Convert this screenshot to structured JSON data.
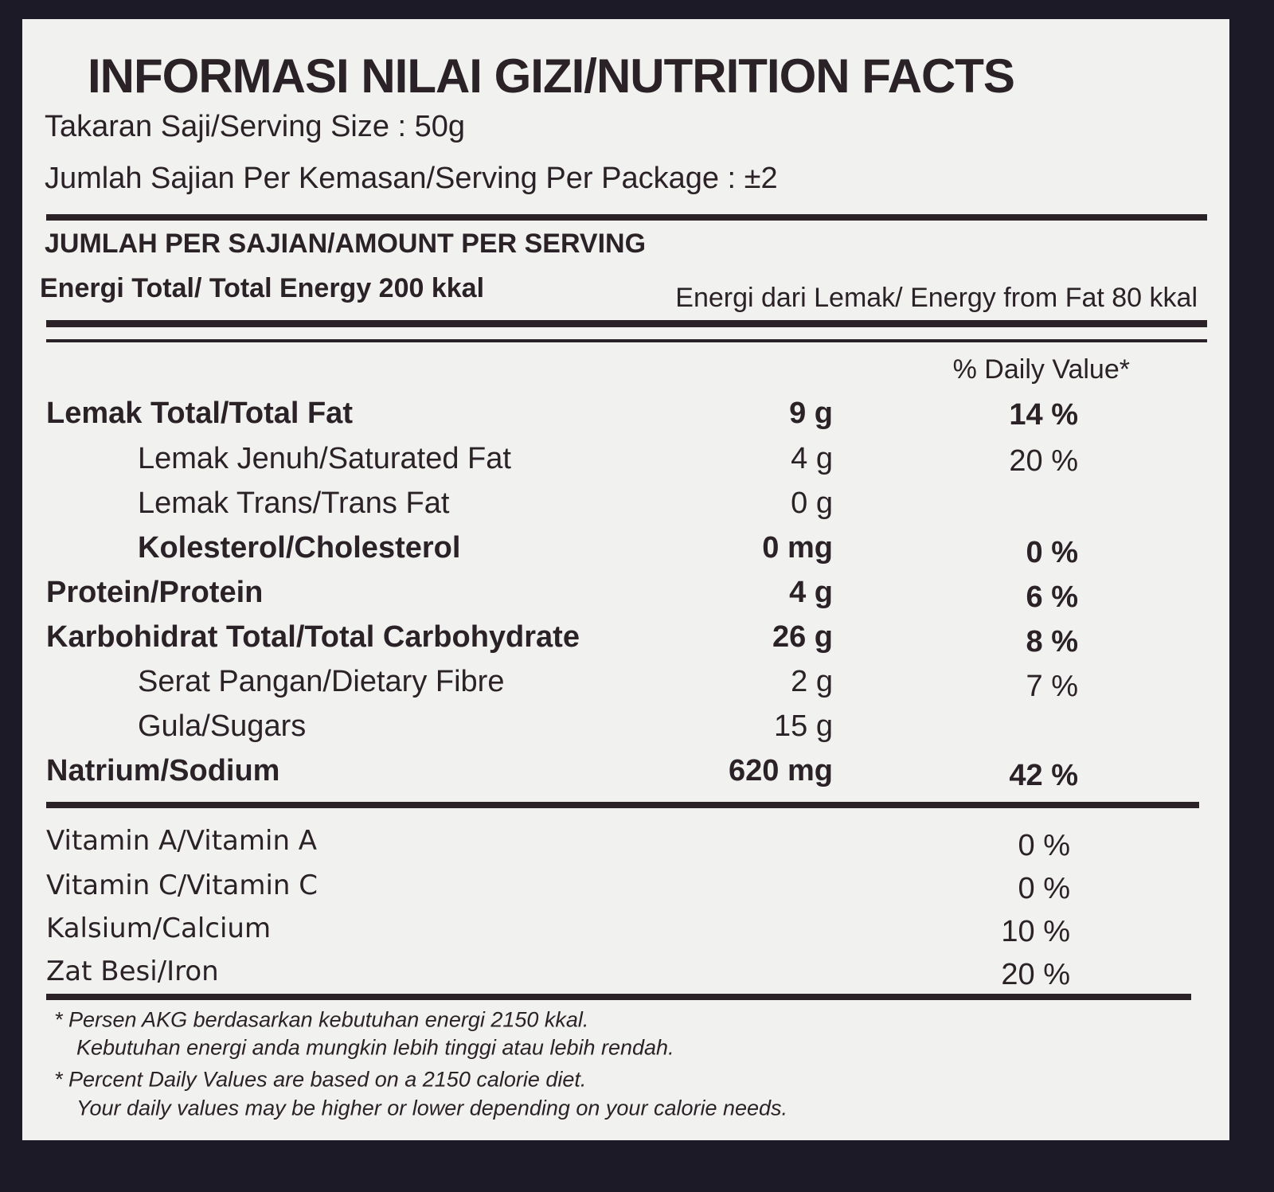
{
  "header": {
    "title": "INFORMASI NILAI GIZI/NUTRITION FACTS",
    "serving_size": "Takaran Saji/Serving Size : 50g",
    "servings_per_package": "Jumlah Sajian Per Kemasan/Serving Per Package : ±2"
  },
  "amount_per_serving": {
    "heading": "JUMLAH PER SAJIAN/AMOUNT PER SERVING",
    "total_energy": "Energi Total/ Total Energy 200 kkal",
    "energy_from_fat": "Energi dari Lemak/ Energy from Fat 80 kkal"
  },
  "daily_value_heading": "% Daily Value*",
  "nutrients": [
    [
      "Lemak Total/Total Fat",
      "9 g",
      "14 %"
    ],
    [
      "Lemak Jenuh/Saturated Fat",
      "4 g",
      "20 %"
    ],
    [
      "Lemak Trans/Trans Fat",
      "0 g"
    ],
    [
      "Kolesterol/Cholesterol",
      "0 mg",
      "0 %"
    ],
    [
      "Protein/Protein",
      "4 g",
      "6 %"
    ],
    [
      "Karbohidrat Total/Total Carbohydrate",
      "26 g",
      "8 %"
    ],
    [
      "Serat Pangan/Dietary Fibre",
      "2 g",
      "7 %"
    ],
    [
      "Gula/Sugars",
      "15 g"
    ],
    [
      "Natrium/Sodium",
      "620 mg",
      "42 %"
    ]
  ],
  "vitamins": [
    [
      "Vitamin A/Vitamin A",
      "0 %"
    ],
    [
      "Vitamin C/Vitamin C",
      "0 %"
    ],
    [
      "Kalsium/Calcium",
      "10 %"
    ],
    [
      "Zat Besi/Iron",
      "20 %"
    ]
  ],
  "footnotes": [
    "* Persen AKG berdasarkan kebutuhan energi 2150 kkal.",
    "Kebutuhan energi anda mungkin lebih tinggi atau lebih rendah.",
    "* Percent Daily Values are based on a 2150 calorie diet.",
    "Your daily values may be higher or lower depending on your calorie needs."
  ]
}
